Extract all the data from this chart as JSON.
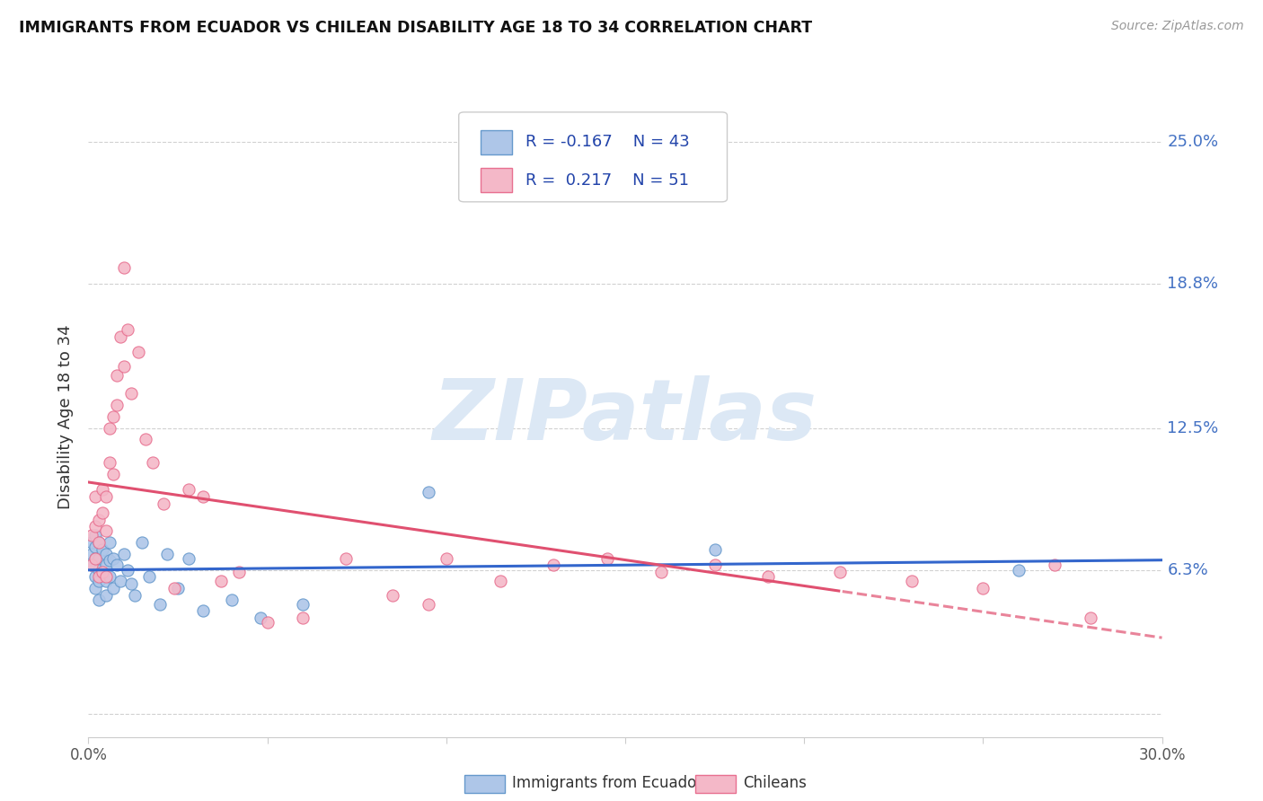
{
  "title": "IMMIGRANTS FROM ECUADOR VS CHILEAN DISABILITY AGE 18 TO 34 CORRELATION CHART",
  "source": "Source: ZipAtlas.com",
  "ylabel": "Disability Age 18 to 34",
  "xlim": [
    0.0,
    0.3
  ],
  "ylim": [
    -0.01,
    0.27
  ],
  "ytick_vals": [
    0.0,
    0.063,
    0.125,
    0.188,
    0.25
  ],
  "ytick_labels": [
    "",
    "6.3%",
    "12.5%",
    "18.8%",
    "25.0%"
  ],
  "xtick_vals": [
    0.0,
    0.05,
    0.1,
    0.15,
    0.2,
    0.25,
    0.3
  ],
  "xtick_labels": [
    "0.0%",
    "",
    "",
    "",
    "",
    "",
    "30.0%"
  ],
  "grid_color": "#cccccc",
  "bg_color": "#ffffff",
  "ecuador_fill": "#aec6e8",
  "ecuador_edge": "#6699cc",
  "chilean_fill": "#f4b8c8",
  "chilean_edge": "#e87090",
  "trend_ecuador": "#3366cc",
  "trend_chilean": "#e05070",
  "watermark": "ZIPatlas",
  "watermark_color": "#dce8f5",
  "legend_r1": "-0.167",
  "legend_n1": "43",
  "legend_r2": "0.217",
  "legend_n2": "51",
  "ecuador_x": [
    0.001,
    0.001,
    0.001,
    0.002,
    0.002,
    0.002,
    0.002,
    0.002,
    0.003,
    0.003,
    0.003,
    0.003,
    0.003,
    0.004,
    0.004,
    0.005,
    0.005,
    0.005,
    0.005,
    0.006,
    0.006,
    0.006,
    0.007,
    0.007,
    0.008,
    0.009,
    0.01,
    0.011,
    0.012,
    0.013,
    0.015,
    0.017,
    0.02,
    0.022,
    0.025,
    0.028,
    0.032,
    0.04,
    0.048,
    0.06,
    0.095,
    0.175,
    0.26
  ],
  "ecuador_y": [
    0.075,
    0.07,
    0.065,
    0.078,
    0.073,
    0.068,
    0.06,
    0.055,
    0.075,
    0.068,
    0.063,
    0.058,
    0.05,
    0.072,
    0.062,
    0.07,
    0.065,
    0.058,
    0.052,
    0.075,
    0.067,
    0.06,
    0.068,
    0.055,
    0.065,
    0.058,
    0.07,
    0.063,
    0.057,
    0.052,
    0.075,
    0.06,
    0.048,
    0.07,
    0.055,
    0.068,
    0.045,
    0.05,
    0.042,
    0.048,
    0.097,
    0.072,
    0.063
  ],
  "chilean_x": [
    0.001,
    0.001,
    0.002,
    0.002,
    0.002,
    0.003,
    0.003,
    0.003,
    0.004,
    0.004,
    0.004,
    0.005,
    0.005,
    0.005,
    0.006,
    0.006,
    0.007,
    0.007,
    0.008,
    0.008,
    0.009,
    0.01,
    0.01,
    0.011,
    0.012,
    0.014,
    0.016,
    0.018,
    0.021,
    0.024,
    0.028,
    0.032,
    0.037,
    0.042,
    0.05,
    0.06,
    0.072,
    0.085,
    0.095,
    0.1,
    0.115,
    0.13,
    0.145,
    0.16,
    0.175,
    0.19,
    0.21,
    0.23,
    0.25,
    0.27,
    0.28
  ],
  "chilean_y": [
    0.078,
    0.065,
    0.095,
    0.082,
    0.068,
    0.085,
    0.075,
    0.06,
    0.098,
    0.088,
    0.062,
    0.095,
    0.08,
    0.06,
    0.125,
    0.11,
    0.13,
    0.105,
    0.148,
    0.135,
    0.165,
    0.195,
    0.152,
    0.168,
    0.14,
    0.158,
    0.12,
    0.11,
    0.092,
    0.055,
    0.098,
    0.095,
    0.058,
    0.062,
    0.04,
    0.042,
    0.068,
    0.052,
    0.048,
    0.068,
    0.058,
    0.065,
    0.068,
    0.062,
    0.065,
    0.06,
    0.062,
    0.058,
    0.055,
    0.065,
    0.042
  ],
  "trendline_solid_end_chilean": 0.21
}
